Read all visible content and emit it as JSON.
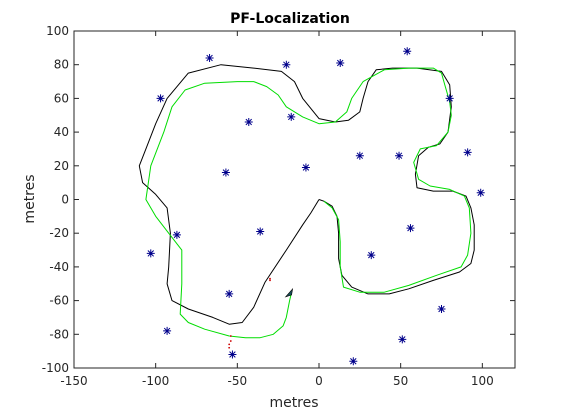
{
  "chart_data": {
    "type": "scatter",
    "title": "PF-Localization",
    "xlabel": "metres",
    "ylabel": "metres",
    "xlim": [
      -150,
      120
    ],
    "ylim": [
      -100,
      100
    ],
    "xticks": [
      -150,
      -100,
      -50,
      0,
      50,
      100
    ],
    "yticks": [
      -100,
      -80,
      -60,
      -40,
      -20,
      0,
      20,
      40,
      60,
      80,
      100
    ],
    "grid": false,
    "legend": "none",
    "colors": {
      "landmarks": "#00008b",
      "ground_truth": "#000000",
      "estimate": "#00dd00",
      "particles": "#cc0000",
      "robot": "#1a4f5a"
    },
    "series": [
      {
        "marker": "asterisk",
        "points": [
          [
            -67,
            84
          ],
          [
            -20,
            80
          ],
          [
            13,
            81
          ],
          [
            54,
            88
          ],
          [
            -97,
            60
          ],
          [
            80,
            60
          ],
          [
            -43,
            46
          ],
          [
            -17,
            49
          ],
          [
            -57,
            16
          ],
          [
            -8,
            19
          ],
          [
            25,
            26
          ],
          [
            49,
            26
          ],
          [
            91,
            28
          ],
          [
            99,
            4
          ],
          [
            -87,
            -21
          ],
          [
            -36,
            -19
          ],
          [
            -103,
            -32
          ],
          [
            56,
            -17
          ],
          [
            32,
            -33
          ],
          [
            -55,
            -56
          ],
          [
            -93,
            -78
          ],
          [
            75,
            -65
          ],
          [
            51,
            -83
          ],
          [
            -53,
            -92
          ],
          [
            21,
            -96
          ]
        ]
      },
      {
        "line": "solid",
        "points": [
          [
            0,
            0
          ],
          [
            3,
            -1
          ],
          [
            8,
            -4
          ],
          [
            11,
            -10
          ],
          [
            12,
            -20
          ],
          [
            12,
            -35
          ],
          [
            14,
            -45
          ],
          [
            20,
            -52
          ],
          [
            30,
            -56
          ],
          [
            43,
            -56
          ],
          [
            55,
            -53
          ],
          [
            70,
            -48
          ],
          [
            86,
            -43
          ],
          [
            93,
            -38
          ],
          [
            95,
            -30
          ],
          [
            95,
            -15
          ],
          [
            93,
            -5
          ],
          [
            90,
            2
          ],
          [
            82,
            5
          ],
          [
            70,
            5
          ],
          [
            60,
            7
          ],
          [
            59,
            15
          ],
          [
            61,
            26
          ],
          [
            67,
            31
          ],
          [
            74,
            33
          ],
          [
            79,
            40
          ],
          [
            81,
            55
          ],
          [
            80,
            68
          ],
          [
            75,
            76
          ],
          [
            60,
            78
          ],
          [
            45,
            78
          ],
          [
            35,
            77
          ],
          [
            30,
            70
          ],
          [
            27,
            60
          ],
          [
            25,
            52
          ],
          [
            18,
            47
          ],
          [
            10,
            46
          ],
          [
            0,
            48
          ],
          [
            -10,
            60
          ],
          [
            -15,
            70
          ],
          [
            -23,
            76
          ],
          [
            -40,
            78
          ],
          [
            -60,
            80
          ],
          [
            -80,
            75
          ],
          [
            -93,
            60
          ],
          [
            -100,
            45
          ],
          [
            -106,
            30
          ],
          [
            -110,
            20
          ],
          [
            -108,
            10
          ],
          [
            -100,
            3
          ],
          [
            -93,
            -5
          ],
          [
            -91,
            -20
          ],
          [
            -92,
            -40
          ],
          [
            -93,
            -50
          ],
          [
            -90,
            -60
          ],
          [
            -80,
            -65
          ],
          [
            -65,
            -70
          ],
          [
            -55,
            -74
          ],
          [
            -47,
            -73
          ],
          [
            -40,
            -64
          ],
          [
            -33,
            -49
          ],
          [
            -20,
            -30
          ],
          [
            -10,
            -15
          ],
          [
            -5,
            -8
          ],
          [
            0,
            0
          ]
        ]
      },
      {
        "line": "solid",
        "points": [
          [
            -55,
            -81
          ],
          [
            -45,
            -82
          ],
          [
            -36,
            -82
          ],
          [
            -28,
            -80
          ],
          [
            -22,
            -75
          ],
          [
            -20,
            -70
          ],
          [
            -18,
            -60
          ],
          [
            -17,
            -56
          ]
        ]
      },
      {
        "line": "solid",
        "points": [
          [
            -55,
            -81
          ],
          [
            -70,
            -77
          ],
          [
            -80,
            -73
          ],
          [
            -85,
            -68
          ],
          [
            -84,
            -50
          ],
          [
            -84,
            -30
          ],
          [
            -92,
            -20
          ],
          [
            -100,
            -10
          ],
          [
            -106,
            0
          ],
          [
            -103,
            20
          ],
          [
            -95,
            40
          ],
          [
            -90,
            55
          ],
          [
            -82,
            65
          ],
          [
            -70,
            69
          ],
          [
            -50,
            70
          ],
          [
            -40,
            70
          ],
          [
            -32,
            67
          ],
          [
            -25,
            62
          ],
          [
            -20,
            55
          ],
          [
            -10,
            49
          ],
          [
            0,
            45
          ],
          [
            10,
            46
          ],
          [
            17,
            52
          ],
          [
            20,
            60
          ],
          [
            27,
            70
          ],
          [
            40,
            77
          ],
          [
            55,
            78
          ],
          [
            70,
            78
          ],
          [
            75,
            75
          ],
          [
            77,
            68
          ],
          [
            80,
            58
          ],
          [
            81,
            50
          ],
          [
            79,
            40
          ],
          [
            72,
            32
          ],
          [
            62,
            30
          ],
          [
            58,
            22
          ],
          [
            61,
            12
          ],
          [
            68,
            8
          ],
          [
            80,
            6
          ],
          [
            89,
            2
          ],
          [
            92,
            -5
          ],
          [
            93,
            -20
          ],
          [
            91,
            -33
          ],
          [
            87,
            -40
          ],
          [
            72,
            -45
          ],
          [
            55,
            -51
          ],
          [
            40,
            -55
          ],
          [
            25,
            -55
          ],
          [
            15,
            -52
          ],
          [
            13,
            -40
          ],
          [
            13,
            -25
          ],
          [
            12,
            -12
          ],
          [
            8,
            -5
          ],
          [
            3,
            -1
          ]
        ]
      },
      {
        "marker": "particle-cloud",
        "points": [
          [
            -54,
            -81
          ],
          [
            -54,
            -84
          ],
          [
            -55,
            -86
          ],
          [
            -55,
            -88
          ],
          [
            -30,
            -47
          ],
          [
            -30,
            -48
          ]
        ]
      },
      {
        "marker": "robot",
        "points": [
          [
            -18,
            -56
          ]
        ]
      }
    ]
  }
}
